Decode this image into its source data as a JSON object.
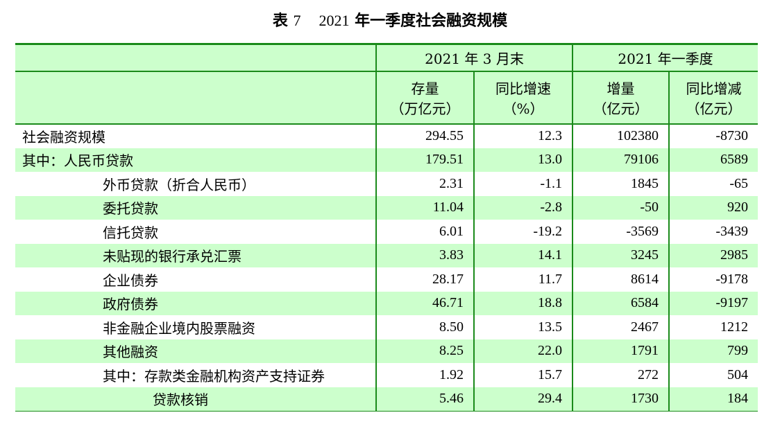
{
  "title": {
    "prefix": "表",
    "number": "7",
    "year": "2021",
    "text": "年一季度社会融资规模"
  },
  "header": {
    "group1": "2021 年 3 月末",
    "group2": "2021 年一季度",
    "col1": {
      "name": "存量",
      "unit": "（万亿元）"
    },
    "col2": {
      "name": "同比增速",
      "unit": "（%）"
    },
    "col3": {
      "name": "增量",
      "unit": "（亿元）"
    },
    "col4": {
      "name": "同比增减",
      "unit": "（亿元）"
    }
  },
  "rows": [
    {
      "label": "社会融资规模",
      "stock": "294.55",
      "yoy": "12.3",
      "increase": "102380",
      "change": "-8730"
    },
    {
      "label": "其中：人民币贷款",
      "stock": "179.51",
      "yoy": "13.0",
      "increase": "79106",
      "change": "6589"
    },
    {
      "label": "外币贷款（折合人民币）",
      "stock": "2.31",
      "yoy": "-1.1",
      "increase": "1845",
      "change": "-65"
    },
    {
      "label": "委托贷款",
      "stock": "11.04",
      "yoy": "-2.8",
      "increase": "-50",
      "change": "920"
    },
    {
      "label": "信托贷款",
      "stock": "6.01",
      "yoy": "-19.2",
      "increase": "-3569",
      "change": "-3439"
    },
    {
      "label": "未贴现的银行承兑汇票",
      "stock": "3.83",
      "yoy": "14.1",
      "increase": "3245",
      "change": "2985"
    },
    {
      "label": "企业债券",
      "stock": "28.17",
      "yoy": "11.7",
      "increase": "8614",
      "change": "-9178"
    },
    {
      "label": "政府债券",
      "stock": "46.71",
      "yoy": "18.8",
      "increase": "6584",
      "change": "-9197"
    },
    {
      "label": "非金融企业境内股票融资",
      "stock": "8.50",
      "yoy": "13.5",
      "increase": "2467",
      "change": "1212"
    },
    {
      "label": "其他融资",
      "stock": "8.25",
      "yoy": "22.0",
      "increase": "1791",
      "change": "799"
    },
    {
      "label": "其中：存款类金融机构资产支持证券",
      "stock": "1.92",
      "yoy": "15.7",
      "increase": "272",
      "change": "504"
    },
    {
      "label": "贷款核销",
      "stock": "5.46",
      "yoy": "29.4",
      "increase": "1730",
      "change": "184"
    }
  ],
  "colors": {
    "rule": "#1a8a1a",
    "band": "#ccffcc"
  }
}
